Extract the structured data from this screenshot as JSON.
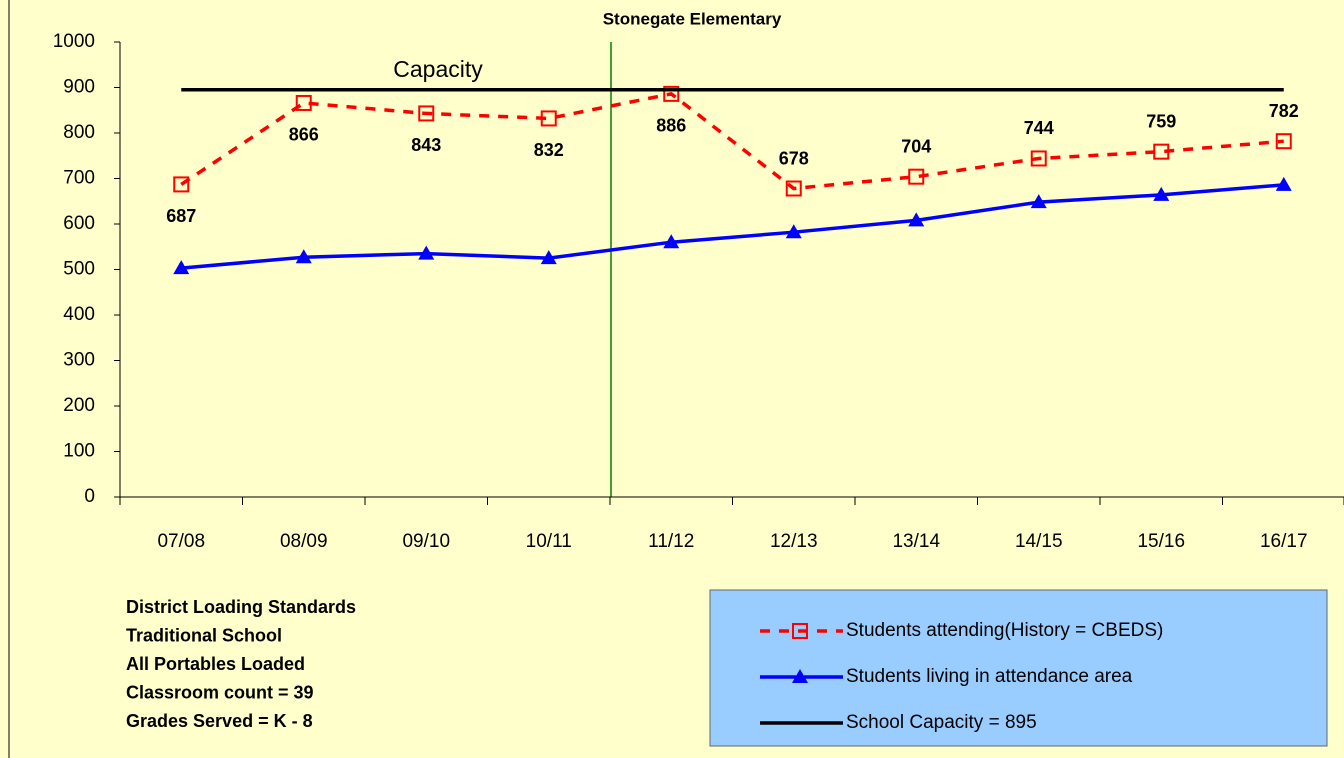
{
  "chart_data": {
    "type": "line",
    "title": "Stonegate Elementary",
    "categories": [
      "07/08",
      "08/09",
      "09/10",
      "10/11",
      "11/12",
      "12/13",
      "13/14",
      "14/15",
      "15/16",
      "16/17"
    ],
    "series": [
      {
        "name": "Students attending(History = CBEDS)",
        "color": "#ff0000",
        "values": [
          687,
          866,
          843,
          832,
          886,
          678,
          704,
          744,
          759,
          782
        ]
      },
      {
        "name": "Students living in attendance area",
        "color": "#0000ff",
        "values": [
          503,
          527,
          535,
          525,
          560,
          582,
          608,
          648,
          664,
          686
        ]
      },
      {
        "name": "School Capacity = 895",
        "color": "#000000",
        "values": [
          895,
          895,
          895,
          895,
          895,
          895,
          895,
          895,
          895,
          895
        ]
      }
    ],
    "ylim": [
      0,
      1000
    ],
    "yticks": [
      0,
      100,
      200,
      300,
      400,
      500,
      600,
      700,
      800,
      900,
      1000
    ],
    "annotations": [
      "Capacity"
    ],
    "notes": [
      "District Loading Standards",
      "Traditional School",
      "All Portables Loaded",
      "Classroom count  = 39",
      "Grades Served = K - 8"
    ]
  }
}
